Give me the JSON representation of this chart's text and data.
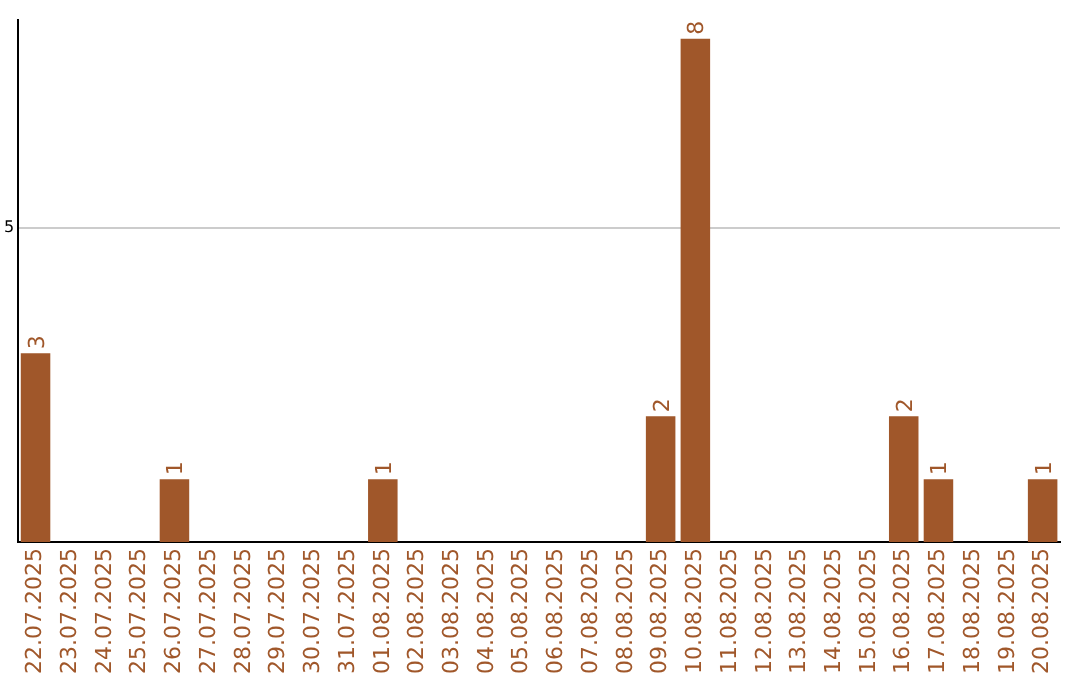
{
  "chart_data": {
    "type": "bar",
    "categories": [
      "22.07.2025",
      "23.07.2025",
      "24.07.2025",
      "25.07.2025",
      "26.07.2025",
      "27.07.2025",
      "28.07.2025",
      "29.07.2025",
      "30.07.2025",
      "31.07.2025",
      "01.08.2025",
      "02.08.2025",
      "03.08.2025",
      "04.08.2025",
      "05.08.2025",
      "06.08.2025",
      "07.08.2025",
      "08.08.2025",
      "09.08.2025",
      "10.08.2025",
      "11.08.2025",
      "12.08.2025",
      "13.08.2025",
      "14.08.2025",
      "15.08.2025",
      "16.08.2025",
      "17.08.2025",
      "18.08.2025",
      "19.08.2025",
      "20.08.2025"
    ],
    "values": [
      3,
      0,
      0,
      0,
      1,
      0,
      0,
      0,
      0,
      0,
      1,
      0,
      0,
      0,
      0,
      0,
      0,
      0,
      2,
      8,
      0,
      0,
      0,
      0,
      0,
      2,
      1,
      0,
      0,
      1
    ],
    "value_labels": [
      "3",
      null,
      null,
      null,
      "1",
      null,
      null,
      null,
      null,
      null,
      "1",
      null,
      null,
      null,
      null,
      null,
      null,
      null,
      "2",
      "8",
      null,
      null,
      null,
      null,
      null,
      "2",
      "1",
      null,
      null,
      "1"
    ],
    "color": "#a0572a",
    "ylim": [
      0,
      8.3
    ],
    "yticks": [
      5
    ],
    "grid": "y",
    "legend": false
  }
}
